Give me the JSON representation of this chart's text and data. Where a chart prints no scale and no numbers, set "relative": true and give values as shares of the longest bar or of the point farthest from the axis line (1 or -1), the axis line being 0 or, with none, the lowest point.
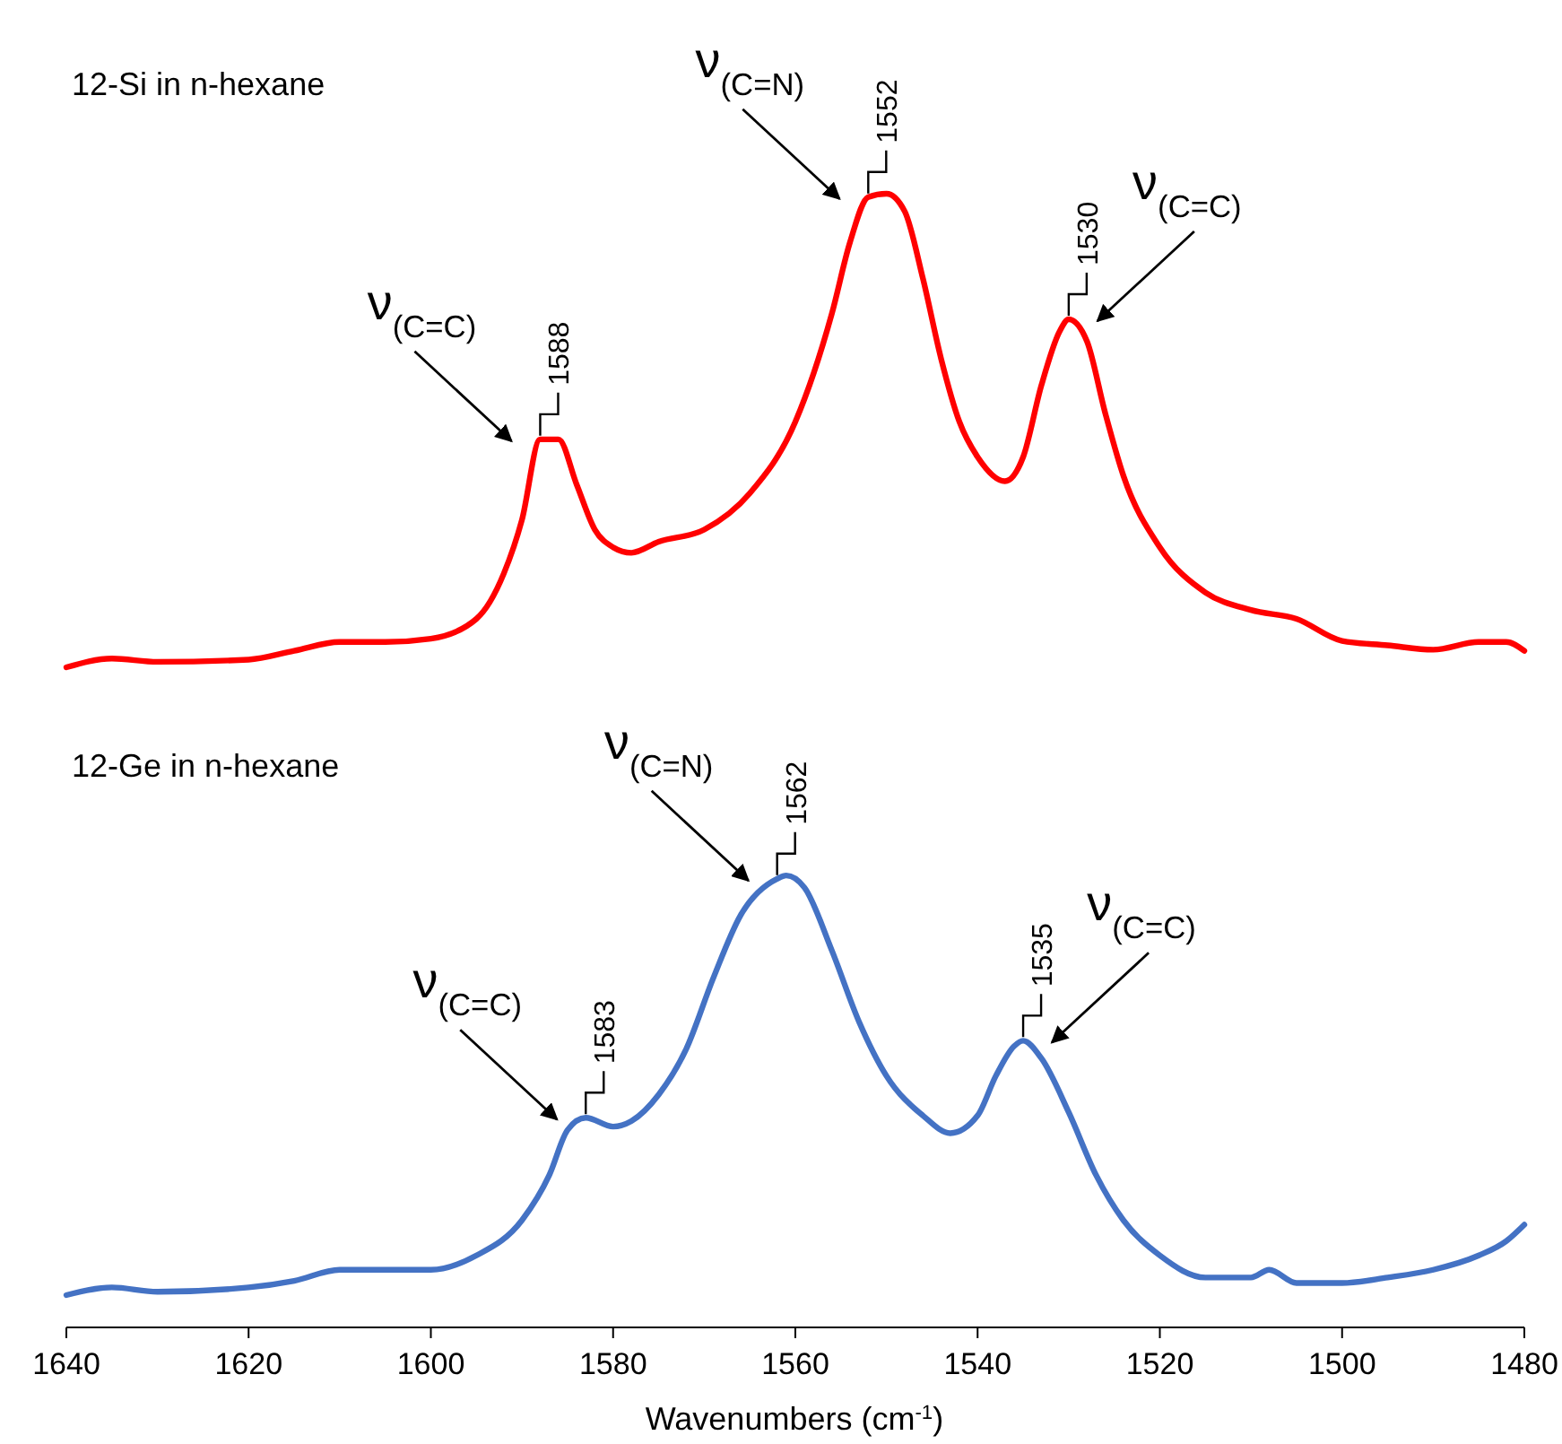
{
  "chart_data": {
    "type": "line",
    "relative": true,
    "xlabel": "Wavenumbers (cm$^{-1}$)",
    "xlim": [
      1640,
      1480
    ],
    "xticks": [
      1640,
      1620,
      1600,
      1580,
      1560,
      1540,
      1520,
      1500,
      1480
    ],
    "tick_labels": "x",
    "series": [
      {
        "color": "#ff0000",
        "x": [
          1640,
          1635,
          1630,
          1620,
          1615,
          1610,
          1605,
          1600,
          1595,
          1592,
          1590,
          1588,
          1586,
          1584,
          1582,
          1580,
          1578,
          1575,
          1570,
          1565,
          1560,
          1556,
          1554,
          1552,
          1550,
          1548,
          1546,
          1544,
          1542,
          1540,
          1537,
          1535,
          1533,
          1531,
          1530,
          1528,
          1526,
          1524,
          1520,
          1515,
          1510,
          1505,
          1500,
          1495,
          1490,
          1485,
          1482,
          1480
        ],
        "values": [
          0.57,
          0.578,
          0.575,
          0.577,
          0.585,
          0.593,
          0.593,
          0.596,
          0.614,
          0.655,
          0.704,
          0.777,
          0.777,
          0.736,
          0.695,
          0.679,
          0.674,
          0.684,
          0.695,
          0.728,
          0.793,
          0.891,
          0.956,
          0.997,
          1,
          0.984,
          0.923,
          0.85,
          0.793,
          0.761,
          0.739,
          0.761,
          0.826,
          0.875,
          0.886,
          0.866,
          0.801,
          0.744,
          0.679,
          0.638,
          0.622,
          0.614,
          0.594,
          0.59,
          0.586,
          0.593,
          0.593,
          0.585
        ]
      },
      {
        "color": "#4472c4",
        "x": [
          1640,
          1635,
          1630,
          1620,
          1615,
          1610,
          1605,
          1600,
          1595,
          1590,
          1587,
          1585,
          1583,
          1580,
          1578,
          1575,
          1572,
          1569,
          1566,
          1562,
          1561,
          1559,
          1556,
          1553,
          1550,
          1546,
          1543,
          1540,
          1538,
          1536,
          1535,
          1533,
          1530,
          1527,
          1524,
          1520,
          1515,
          1510,
          1508,
          1505,
          1500,
          1495,
          1490,
          1485,
          1482,
          1480
        ],
        "values": [
          0,
          0.007,
          0.003,
          0.007,
          0.013,
          0.023,
          0.023,
          0.023,
          0.036,
          0.068,
          0.109,
          0.15,
          0.161,
          0.153,
          0.158,
          0.182,
          0.223,
          0.288,
          0.345,
          0.378,
          0.381,
          0.37,
          0.313,
          0.248,
          0.199,
          0.163,
          0.147,
          0.163,
          0.199,
          0.226,
          0.231,
          0.215,
          0.166,
          0.109,
          0.068,
          0.036,
          0.016,
          0.016,
          0.023,
          0.011,
          0.011,
          0.016,
          0.023,
          0.036,
          0.049,
          0.064
        ]
      }
    ],
    "annotations": [
      "12-Si in n-hexane",
      "12-Ge in n-hexane",
      "ν$_{(C=C)}$",
      "ν$_{(C=N)}$",
      "ν$_{(C=C)}$",
      "ν$_{(C=C)}$",
      "ν$_{(C=N)}$",
      "ν$_{(C=C)}$",
      {
        "text": "1588",
        "x": 1588,
        "y": 0.777
      },
      {
        "text": "1552",
        "x": 1552,
        "y": 0.997
      },
      {
        "text": "1530",
        "x": 1530,
        "y": 0.886
      },
      {
        "text": "1583",
        "x": 1583,
        "y": 0.161
      },
      {
        "text": "1562",
        "x": 1562,
        "y": 0.378
      },
      {
        "text": "1535",
        "x": 1535,
        "y": 0.231
      }
    ]
  }
}
